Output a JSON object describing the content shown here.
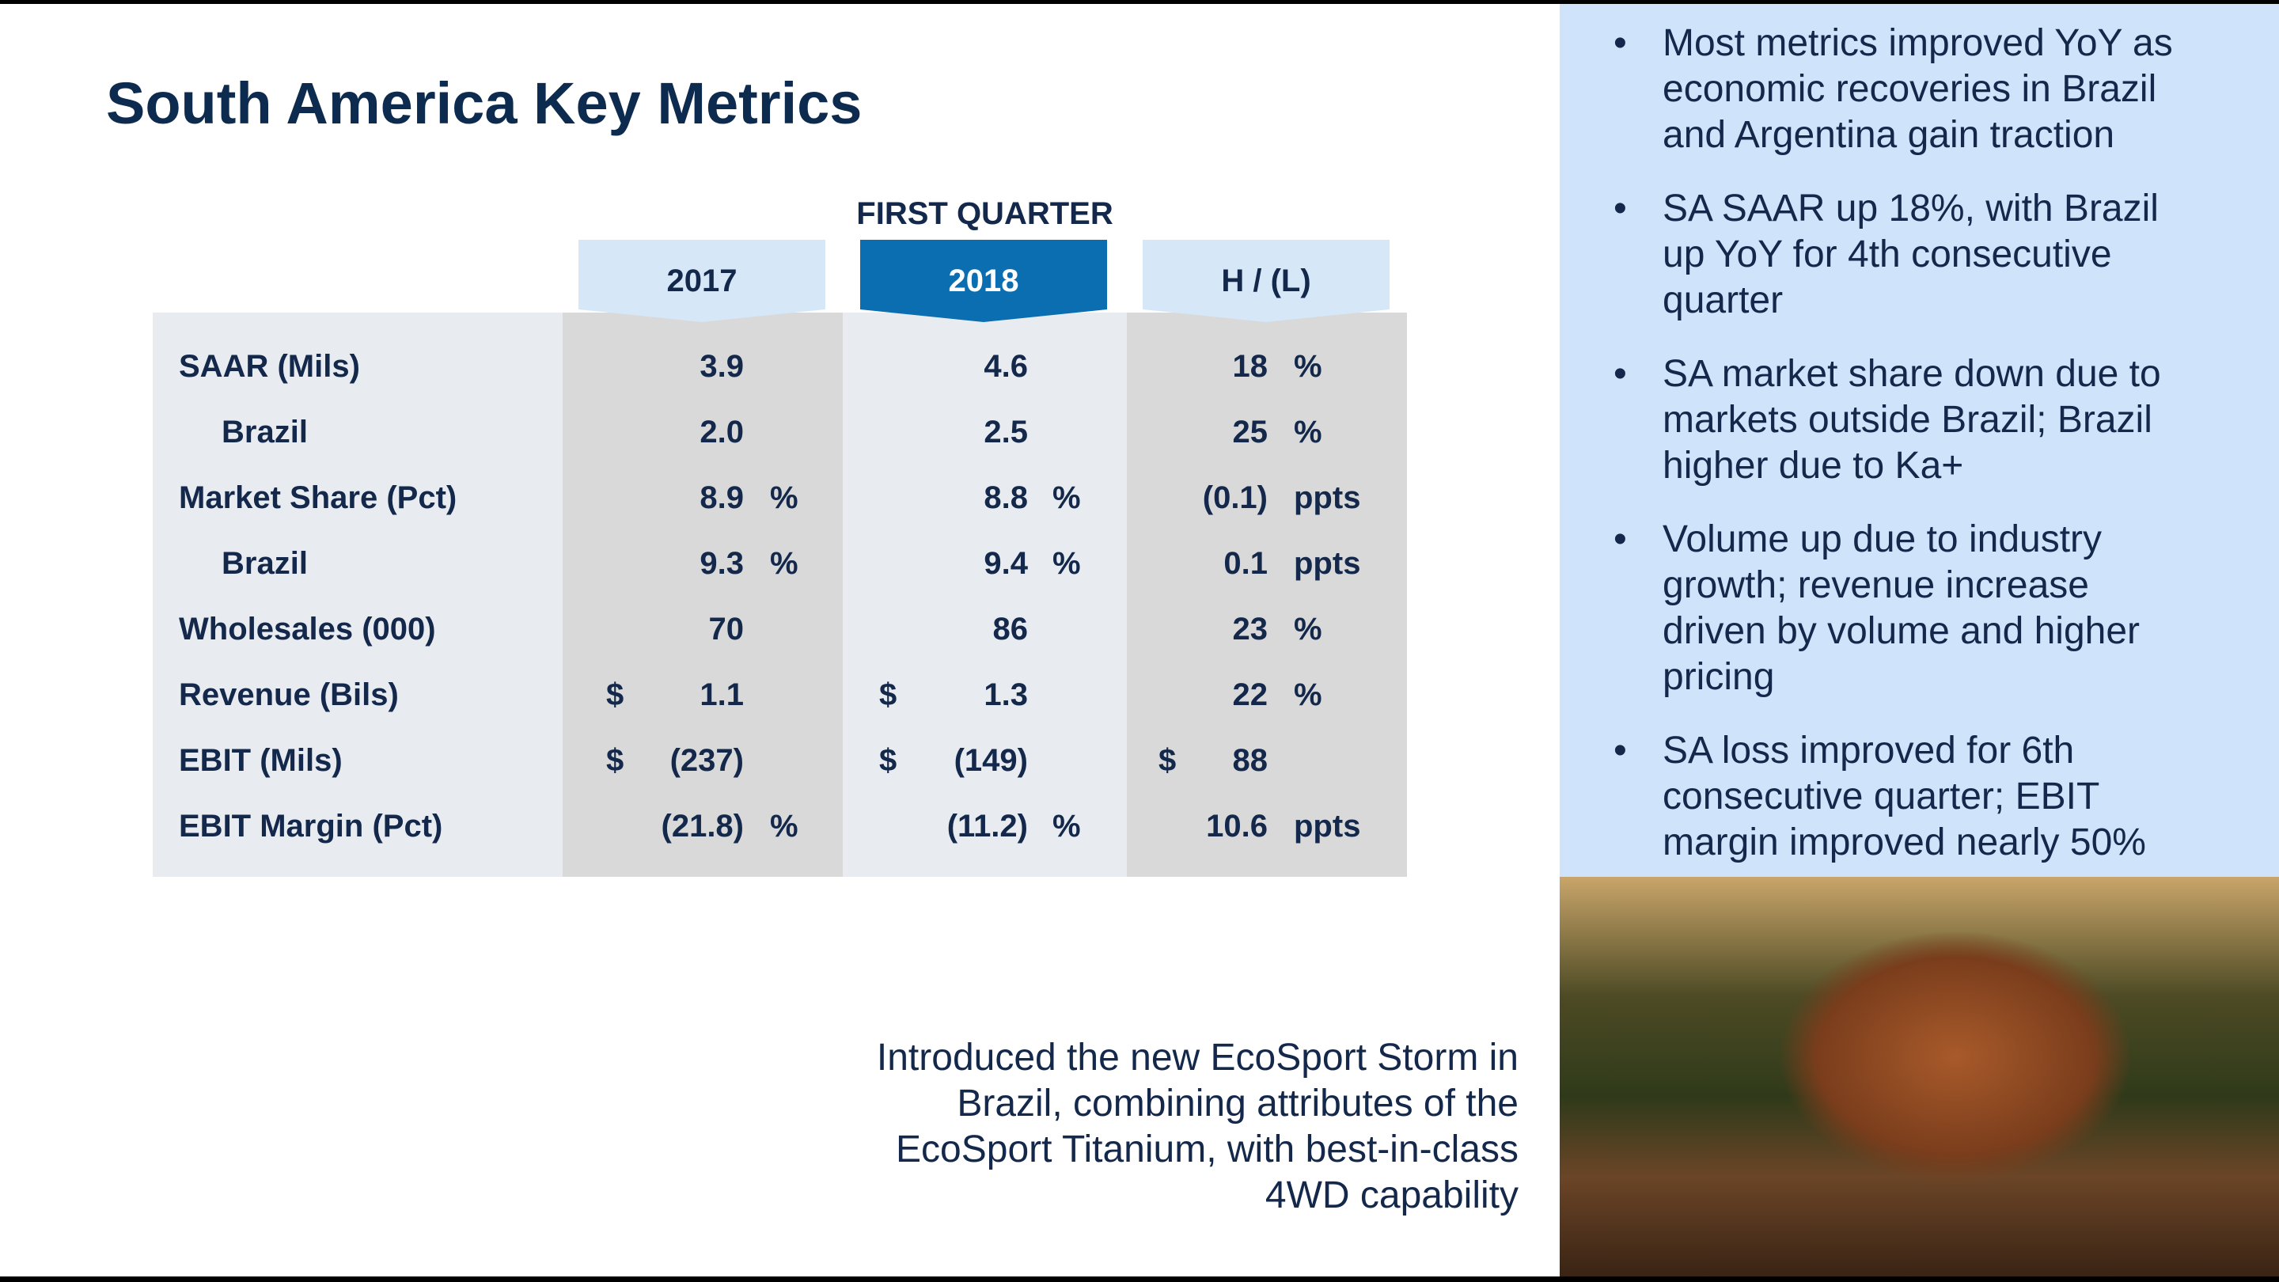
{
  "title": "South America Key Metrics",
  "table": {
    "group_header": "FIRST QUARTER",
    "columns": [
      "2017",
      "2018",
      "H / (L)"
    ],
    "rows": [
      {
        "label": "SAAR (Mils)",
        "cells": [
          {
            "value": "3.9"
          },
          {
            "value": "4.6"
          },
          {
            "value": "18",
            "suffix": "%"
          }
        ]
      },
      {
        "label": "Brazil",
        "indent": true,
        "cells": [
          {
            "value": "2.0"
          },
          {
            "value": "2.5"
          },
          {
            "value": "25",
            "suffix": "%"
          }
        ]
      },
      {
        "label": "Market Share (Pct)",
        "cells": [
          {
            "value": "8.9",
            "suffix": "%"
          },
          {
            "value": "8.8",
            "suffix": "%"
          },
          {
            "value": "(0.1)",
            "suffix": "ppts"
          }
        ]
      },
      {
        "label": "Brazil",
        "indent": true,
        "cells": [
          {
            "value": "9.3",
            "suffix": "%"
          },
          {
            "value": "9.4",
            "suffix": "%"
          },
          {
            "value": "0.1",
            "suffix": "ppts"
          }
        ]
      },
      {
        "label": "Wholesales (000)",
        "cells": [
          {
            "value": "70"
          },
          {
            "value": "86"
          },
          {
            "value": "23",
            "suffix": "%"
          }
        ]
      },
      {
        "label": "Revenue (Bils)",
        "cells": [
          {
            "prefix": "$",
            "value": "1.1"
          },
          {
            "prefix": "$",
            "value": "1.3"
          },
          {
            "value": "22",
            "suffix": "%"
          }
        ]
      },
      {
        "label": "EBIT (Mils)",
        "cells": [
          {
            "prefix": "$",
            "value": "(237)"
          },
          {
            "prefix": "$",
            "value": "(149)"
          },
          {
            "prefix": "$",
            "value": "88"
          }
        ]
      },
      {
        "label": "EBIT Margin (Pct)",
        "cells": [
          {
            "value": "(21.8)",
            "suffix": "%"
          },
          {
            "value": "(11.2)",
            "suffix": "%"
          },
          {
            "value": "10.6",
            "suffix": "ppts"
          }
        ]
      }
    ]
  },
  "bullets": [
    "Most metrics improved YoY as economic recoveries in Brazil and Argentina gain traction",
    "SA SAAR up 18%, with Brazil up YoY for 4th consecutive quarter",
    "SA market share down due to markets outside Brazil; Brazil higher due to Ka+",
    "Volume up due to industry growth; revenue increase driven by volume and higher pricing",
    "SA loss improved for 6th consecutive quarter; EBIT margin improved nearly 50%"
  ],
  "caption": [
    "Introduced the new EcoSport Storm in",
    "Brazil, combining attributes of the",
    "EcoSport Titanium, with best-in-class",
    "4WD capability"
  ]
}
